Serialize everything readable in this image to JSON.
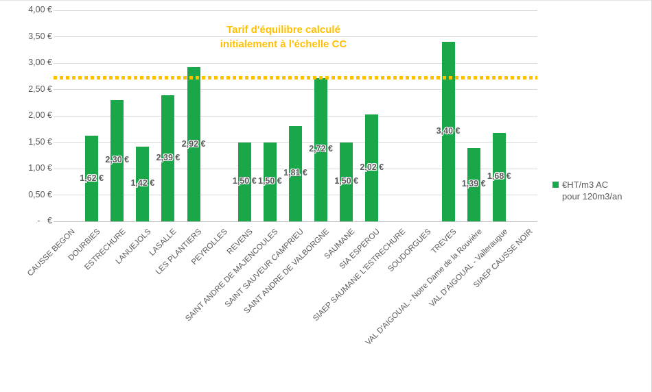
{
  "chart_data": {
    "type": "bar",
    "title": "Tarif d'équilibre calculé initialement à l'échelle CC",
    "xlabel": "",
    "ylabel": "",
    "ylim": [
      0,
      4
    ],
    "grid": true,
    "bar_color": "#19A74A",
    "label_color": "#595959",
    "categories": [
      "CAUSSE BEGON",
      "DOURBIES",
      "ESTRECHURE",
      "LANUEJOLS",
      "LASALLE",
      "LES PLANTIERS",
      "PEYROLLES",
      "REVENS",
      "SAINT ANDRE DE MAJENCOULES",
      "SAINT SAUVEUR CAMPRIEU",
      "SAINT ANDRE DE VALBORGNE",
      "SAUMANE",
      "SIA ESPEROU",
      "SIAEP SAUMANE L'ESTRECHURE",
      "SOUDORGUES",
      "TREVES",
      "VAL D'AIGOUAL - Notre Dame de la Rouvière",
      "VAL D'AIGOUAL - Valleraugue",
      "SIAEP CAUSSE NOIR"
    ],
    "series": [
      {
        "name": "€HT/m3 AC pour 120m3/an",
        "values": [
          null,
          1.62,
          2.3,
          1.42,
          2.39,
          2.92,
          null,
          1.5,
          1.5,
          1.81,
          2.72,
          1.5,
          2.02,
          null,
          null,
          3.4,
          1.39,
          1.68,
          null
        ],
        "value_labels": [
          "",
          "1,62 €",
          "2,30 €",
          "1,42 €",
          "2,39 €",
          "2,92 €",
          "",
          "1,50 €",
          "1,50 €",
          "1,81 €",
          "2,72 €",
          "1,50 €",
          "2,02 €",
          "",
          "",
          "3,40 €",
          "1,39 €",
          "1,68 €",
          ""
        ]
      }
    ],
    "y_ticks": [
      {
        "value": 4.0,
        "label": "4,00 €"
      },
      {
        "value": 3.5,
        "label": "3,50 €"
      },
      {
        "value": 3.0,
        "label": "3,00 €"
      },
      {
        "value": 2.5,
        "label": "2,50 €"
      },
      {
        "value": 2.0,
        "label": "2,00 €"
      },
      {
        "value": 1.5,
        "label": "1,50 €"
      },
      {
        "value": 1.0,
        "label": "1,00 €"
      },
      {
        "value": 0.5,
        "label": "0,50 €"
      },
      {
        "value": 0.0,
        "label": "-   €"
      }
    ],
    "reference_line": {
      "value": 2.72,
      "color": "#FFC000",
      "style": "dotted"
    },
    "legend_position": "right"
  },
  "annotation": {
    "line1": "Tarif d'équilibre calculé",
    "line2": "initialement à l'échelle CC",
    "color": "#FFC000"
  },
  "legend": {
    "line1": "€HT/m3 AC",
    "line2": "pour 120m3/an",
    "swatch_color": "#19A74A"
  }
}
